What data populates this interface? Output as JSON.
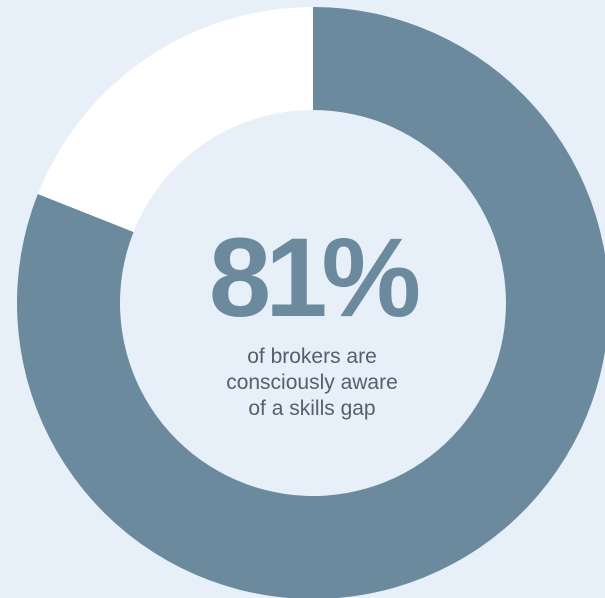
{
  "colors": {
    "background": "#e7eff8",
    "filled_segment": "#6b8a9d",
    "remaining_segment": "#ffffff",
    "value_text": "#6b8a9d",
    "caption_text": "#55606a"
  },
  "chart_data": {
    "type": "pie",
    "style": "donut",
    "values": [
      81,
      19
    ],
    "unit": "%",
    "center_value": "81%",
    "caption_lines": [
      "of brokers are",
      "consciously aware",
      "of a skills gap"
    ]
  }
}
